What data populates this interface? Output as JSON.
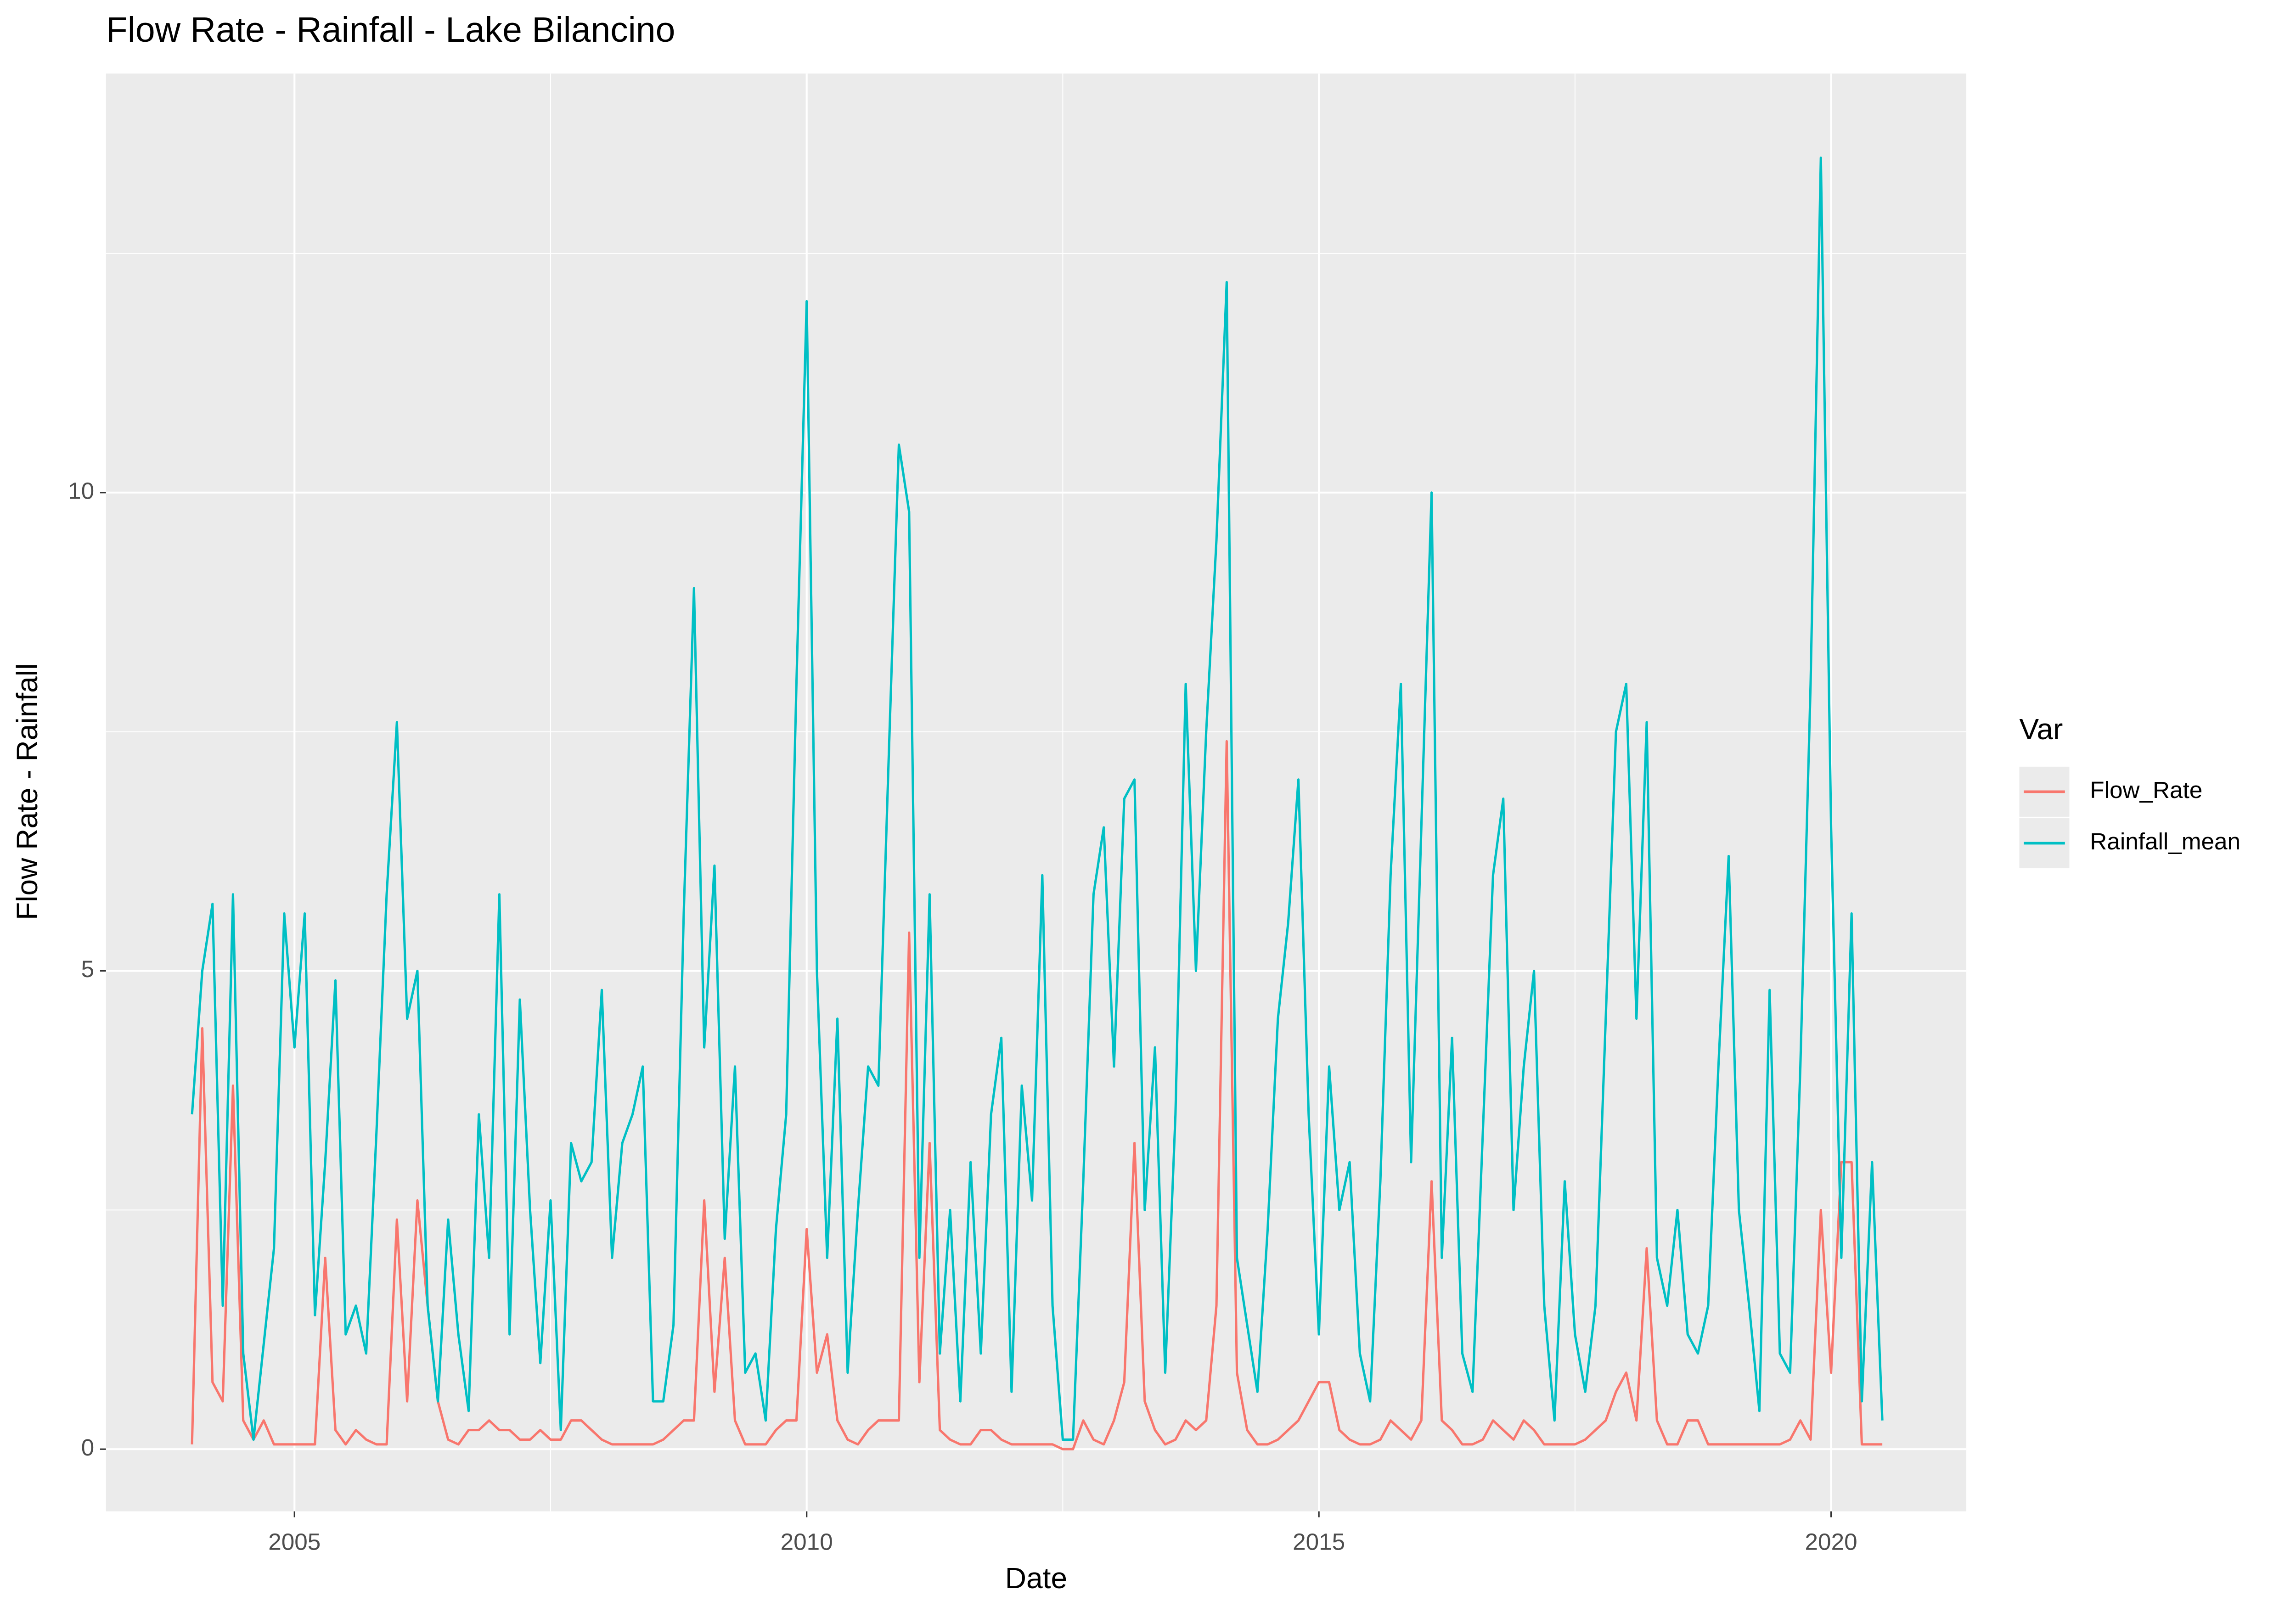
{
  "chart_data": {
    "type": "line",
    "title": "Flow Rate - Rainfall - Lake Bilancino",
    "x_label": "Date",
    "y_label": "Flow Rate - Rainfall",
    "legend_title": "Var",
    "legend_position": "right",
    "grid": true,
    "xlim": [
      2003.16,
      2021.32
    ],
    "ylim": [
      -0.65,
      14.38
    ],
    "xticks": [
      2005,
      2010,
      2015,
      2020
    ],
    "yticks": [
      0,
      5,
      10
    ],
    "x": [
      2004,
      2004.1,
      2004.2,
      2004.3,
      2004.4,
      2004.5,
      2004.6,
      2004.7,
      2004.8,
      2004.9,
      2005,
      2005.1,
      2005.2,
      2005.3,
      2005.4,
      2005.5,
      2005.6,
      2005.7,
      2005.8,
      2005.9,
      2006,
      2006.1,
      2006.2,
      2006.3,
      2006.4,
      2006.5,
      2006.6,
      2006.7,
      2006.8,
      2006.9,
      2007,
      2007.1,
      2007.2,
      2007.3,
      2007.4,
      2007.5,
      2007.6,
      2007.7,
      2007.8,
      2007.9,
      2008,
      2008.1,
      2008.2,
      2008.3,
      2008.4,
      2008.5,
      2008.6,
      2008.7,
      2008.8,
      2008.9,
      2009,
      2009.1,
      2009.2,
      2009.3,
      2009.4,
      2009.5,
      2009.6,
      2009.7,
      2009.8,
      2009.9,
      2010,
      2010.1,
      2010.2,
      2010.3,
      2010.4,
      2010.5,
      2010.6,
      2010.7,
      2010.8,
      2010.9,
      2011,
      2011.1,
      2011.2,
      2011.3,
      2011.4,
      2011.5,
      2011.6,
      2011.7,
      2011.8,
      2011.9,
      2012,
      2012.1,
      2012.2,
      2012.3,
      2012.4,
      2012.5,
      2012.6,
      2012.7,
      2012.8,
      2012.9,
      2013,
      2013.1,
      2013.2,
      2013.3,
      2013.4,
      2013.5,
      2013.6,
      2013.7,
      2013.8,
      2013.9,
      2014,
      2014.1,
      2014.2,
      2014.3,
      2014.4,
      2014.5,
      2014.6,
      2014.7,
      2014.8,
      2014.9,
      2015,
      2015.1,
      2015.2,
      2015.3,
      2015.4,
      2015.5,
      2015.6,
      2015.7,
      2015.8,
      2015.9,
      2016,
      2016.1,
      2016.2,
      2016.3,
      2016.4,
      2016.5,
      2016.6,
      2016.7,
      2016.8,
      2016.9,
      2017,
      2017.1,
      2017.2,
      2017.3,
      2017.4,
      2017.5,
      2017.6,
      2017.7,
      2017.8,
      2017.9,
      2018,
      2018.1,
      2018.2,
      2018.3,
      2018.4,
      2018.5,
      2018.6,
      2018.7,
      2018.8,
      2018.9,
      2019,
      2019.1,
      2019.2,
      2019.3,
      2019.4,
      2019.5,
      2019.6,
      2019.7,
      2019.8,
      2019.9,
      2020,
      2020.1,
      2020.2,
      2020.3,
      2020.4,
      2020.5
    ],
    "series": [
      {
        "name": "Flow_Rate",
        "color": "#F8766D",
        "values": [
          0.05,
          4.4,
          0.7,
          0.5,
          3.8,
          0.3,
          0.1,
          0.3,
          0.05,
          0.05,
          0.05,
          0.05,
          0.05,
          2.0,
          0.2,
          0.05,
          0.2,
          0.1,
          0.05,
          0.05,
          2.4,
          0.5,
          2.6,
          1.5,
          0.5,
          0.1,
          0.05,
          0.2,
          0.2,
          0.3,
          0.2,
          0.2,
          0.1,
          0.1,
          0.2,
          0.1,
          0.1,
          0.3,
          0.3,
          0.2,
          0.1,
          0.05,
          0.05,
          0.05,
          0.05,
          0.05,
          0.1,
          0.2,
          0.3,
          0.3,
          2.6,
          0.6,
          2.0,
          0.3,
          0.05,
          0.05,
          0.05,
          0.2,
          0.3,
          0.3,
          2.3,
          0.8,
          1.2,
          0.3,
          0.1,
          0.05,
          0.2,
          0.3,
          0.3,
          0.3,
          5.4,
          0.7,
          3.2,
          0.2,
          0.1,
          0.05,
          0.05,
          0.2,
          0.2,
          0.1,
          0.05,
          0.05,
          0.05,
          0.05,
          0.05,
          0.0,
          0.0,
          0.3,
          0.1,
          0.05,
          0.3,
          0.7,
          3.2,
          0.5,
          0.2,
          0.05,
          0.1,
          0.3,
          0.2,
          0.3,
          1.5,
          7.4,
          0.8,
          0.2,
          0.05,
          0.05,
          0.1,
          0.2,
          0.3,
          0.5,
          0.7,
          0.7,
          0.2,
          0.1,
          0.05,
          0.05,
          0.1,
          0.3,
          0.2,
          0.1,
          0.3,
          2.8,
          0.3,
          0.2,
          0.05,
          0.05,
          0.1,
          0.3,
          0.2,
          0.1,
          0.3,
          0.2,
          0.05,
          0.05,
          0.05,
          0.05,
          0.1,
          0.2,
          0.3,
          0.6,
          0.8,
          0.3,
          2.1,
          0.3,
          0.05,
          0.05,
          0.3,
          0.3,
          0.05,
          0.05,
          0.05,
          0.05,
          0.05,
          0.05,
          0.05,
          0.05,
          0.1,
          0.3,
          0.1,
          2.5,
          0.8,
          3.0,
          3.0,
          0.05,
          0.05,
          0.05
        ]
      },
      {
        "name": "Rainfall_mean",
        "color": "#00BFC4",
        "values": [
          3.5,
          5.0,
          5.7,
          1.5,
          5.8,
          1.0,
          0.1,
          1.1,
          2.1,
          5.6,
          4.2,
          5.6,
          1.4,
          3.0,
          4.9,
          1.2,
          1.5,
          1.0,
          3.3,
          5.8,
          7.6,
          4.5,
          5.0,
          1.5,
          0.5,
          2.4,
          1.2,
          0.4,
          3.5,
          2.0,
          5.8,
          1.2,
          4.7,
          2.5,
          0.9,
          2.6,
          0.2,
          3.2,
          2.8,
          3.0,
          4.8,
          2.0,
          3.2,
          3.5,
          4.0,
          0.5,
          0.5,
          1.3,
          5.6,
          9.0,
          4.2,
          6.1,
          2.2,
          4.0,
          0.8,
          1.0,
          0.3,
          2.3,
          3.5,
          8.0,
          12.0,
          5.0,
          2.0,
          4.5,
          0.8,
          2.5,
          4.0,
          3.8,
          7.2,
          10.5,
          9.8,
          2.0,
          5.8,
          1.0,
          2.5,
          0.5,
          3.0,
          1.0,
          3.5,
          4.3,
          0.6,
          3.8,
          2.6,
          6.0,
          1.5,
          0.1,
          0.1,
          2.8,
          5.8,
          6.5,
          4.0,
          6.8,
          7.0,
          2.5,
          4.2,
          0.8,
          3.5,
          8.0,
          5.0,
          7.5,
          9.5,
          12.2,
          2.0,
          1.3,
          0.6,
          2.3,
          4.5,
          5.5,
          7.0,
          3.5,
          1.2,
          4.0,
          2.5,
          3.0,
          1.0,
          0.5,
          2.8,
          6.0,
          8.0,
          3.0,
          6.5,
          10.0,
          2.0,
          4.3,
          1.0,
          0.6,
          3.3,
          6.0,
          6.8,
          2.5,
          4.0,
          5.0,
          1.5,
          0.3,
          2.8,
          1.2,
          0.6,
          1.5,
          4.5,
          7.5,
          8.0,
          4.5,
          7.6,
          2.0,
          1.5,
          2.5,
          1.2,
          1.0,
          1.5,
          4.0,
          6.2,
          2.5,
          1.5,
          0.4,
          4.8,
          1.0,
          0.8,
          4.0,
          8.0,
          13.5,
          6.5,
          2.0,
          5.6,
          0.5,
          3.0,
          0.3
        ]
      }
    ]
  }
}
